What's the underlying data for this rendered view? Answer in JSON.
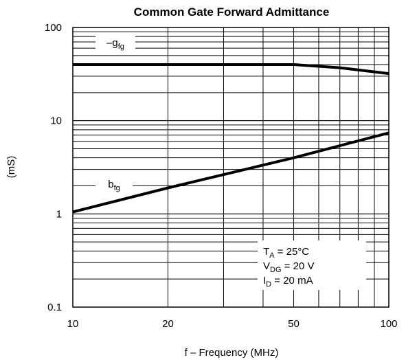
{
  "chart_data": {
    "type": "line",
    "title": "Common Gate Forward Admittance",
    "xlabel": "f – Frequency (MHz)",
    "ylabel": "(mS)",
    "xscale": "log",
    "yscale": "log",
    "xlim": [
      10,
      100
    ],
    "ylim": [
      0.1,
      100
    ],
    "grid": true,
    "x_ticks": [
      {
        "value": 10,
        "label": "10"
      },
      {
        "value": 20,
        "label": "20"
      },
      {
        "value": 50,
        "label": "50"
      },
      {
        "value": 100,
        "label": "100"
      }
    ],
    "y_ticks": [
      {
        "value": 0.1,
        "label": "0.1"
      },
      {
        "value": 1,
        "label": "1"
      },
      {
        "value": 10,
        "label": "10"
      },
      {
        "value": 100,
        "label": "100"
      }
    ],
    "series": [
      {
        "name": "–g",
        "subscript": "fg",
        "x": [
          10,
          20,
          50,
          70,
          100
        ],
        "values": [
          40,
          40,
          40,
          37,
          32
        ]
      },
      {
        "name": "b",
        "subscript": "fg",
        "x": [
          10,
          20,
          50,
          100
        ],
        "values": [
          1.05,
          1.9,
          4.0,
          7.4
        ]
      }
    ],
    "conditions": [
      {
        "main": "T",
        "sub": "A",
        "rest": " = 25°C"
      },
      {
        "main": "V",
        "sub": "DG",
        "rest": " = 20 V"
      },
      {
        "main": "I",
        "sub": "D",
        "rest": " = 20 mA"
      }
    ],
    "line_color": "#000000"
  }
}
